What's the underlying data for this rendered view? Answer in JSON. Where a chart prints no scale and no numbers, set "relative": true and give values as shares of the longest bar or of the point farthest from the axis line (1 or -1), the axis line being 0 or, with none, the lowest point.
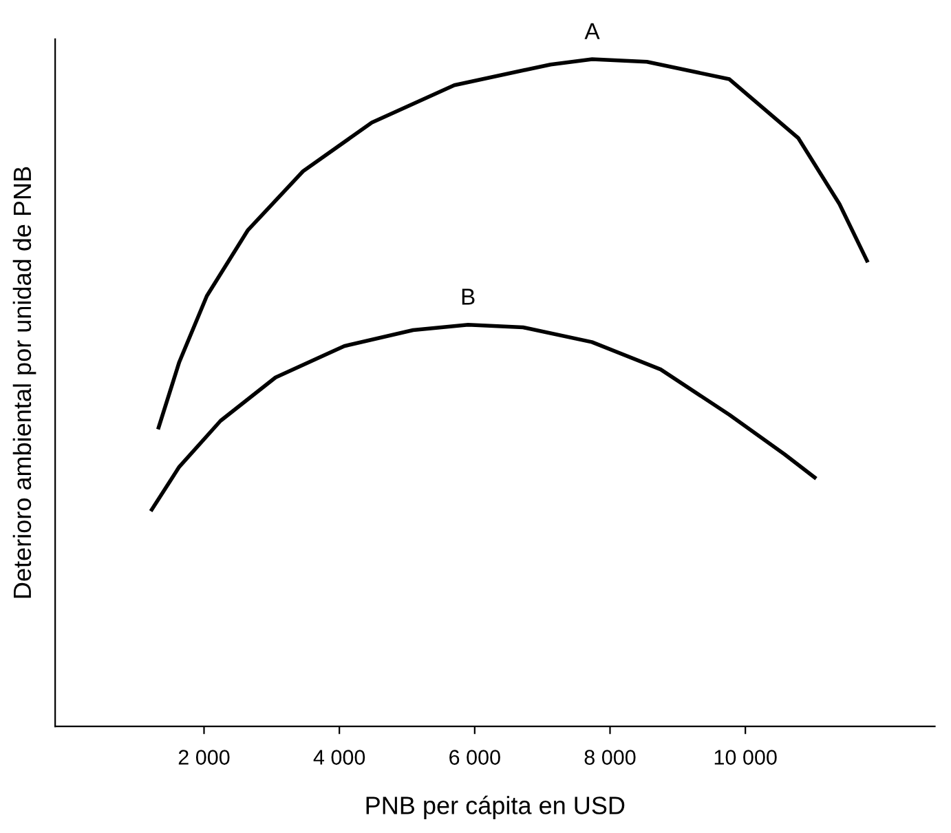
{
  "chart_data": {
    "type": "line",
    "relative": true,
    "xlabel": "PNB per cápita en USD",
    "ylabel": "Deterioro ambiental por unidad de PNB",
    "xlim": [
      -200,
      12800
    ],
    "xticks": [
      {
        "value": 2000,
        "label": "2 000"
      },
      {
        "value": 4000,
        "label": "4 000"
      },
      {
        "value": 6000,
        "label": "6 000"
      },
      {
        "value": 8000,
        "label": "8 000"
      },
      {
        "value": 10000,
        "label": "10 000"
      }
    ],
    "grid": false,
    "legend": false,
    "marker": "none",
    "line_style": "solid",
    "series": [
      {
        "name": "A",
        "color": "#000000",
        "x": [
          1329,
          1634,
          2041,
          2650,
          3463,
          4480,
          5699,
          7122,
          7736,
          8545,
          9764,
          10780,
          11390,
          11797
        ],
        "values": [
          0.448,
          0.546,
          0.645,
          0.744,
          0.832,
          0.905,
          0.961,
          0.992,
          1.0,
          0.996,
          0.97,
          0.882,
          0.783,
          0.698
        ]
      },
      {
        "name": "B",
        "color": "#000000",
        "x": [
          1228,
          1634,
          2244,
          3057,
          4073,
          5089,
          5902,
          6715,
          7732,
          8748,
          9764,
          10577,
          11024
        ],
        "values": [
          0.325,
          0.389,
          0.458,
          0.523,
          0.57,
          0.594,
          0.602,
          0.598,
          0.576,
          0.535,
          0.467,
          0.408,
          0.373
        ]
      }
    ]
  }
}
